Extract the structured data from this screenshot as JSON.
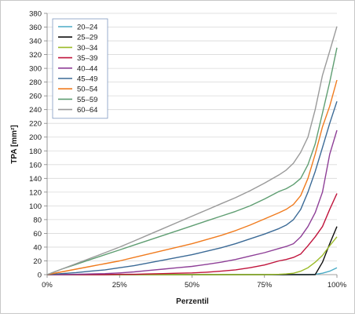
{
  "chart_data": {
    "type": "line",
    "xlabel": "Perzentil",
    "ylabel": "TPA [mm²]",
    "xlim": [
      0,
      100
    ],
    "ylim": [
      0,
      380
    ],
    "x_ticks": [
      0,
      25,
      50,
      75,
      100
    ],
    "x_tick_labels": [
      "0%",
      "25%",
      "50%",
      "75%",
      "100%"
    ],
    "y_ticks": [
      0,
      20,
      40,
      60,
      80,
      100,
      120,
      140,
      160,
      180,
      200,
      220,
      240,
      260,
      280,
      300,
      320,
      340,
      360,
      380
    ],
    "grid": "horizontal",
    "legend_position": "top-left",
    "x": [
      0,
      5,
      10,
      15,
      20,
      25,
      30,
      35,
      40,
      45,
      50,
      55,
      60,
      65,
      70,
      75,
      80,
      82.5,
      85,
      87.5,
      90,
      92.5,
      95,
      97.5,
      100
    ],
    "series": [
      {
        "name": "20–24",
        "color": "#4bacc6",
        "values": [
          0,
          0,
          0,
          0,
          0,
          0,
          0,
          0,
          0,
          0,
          0,
          0,
          0,
          0,
          0,
          0,
          0,
          0,
          0,
          0,
          0,
          0.5,
          2,
          5,
          10
        ]
      },
      {
        "name": "25–29",
        "color": "#111111",
        "values": [
          0,
          0,
          0,
          0,
          0,
          0,
          0,
          0,
          0,
          0,
          0,
          0,
          0,
          0,
          0,
          0,
          0,
          0,
          0,
          0,
          0,
          0,
          18,
          45,
          70
        ]
      },
      {
        "name": "30–34",
        "color": "#9bbb28",
        "values": [
          0,
          0,
          0,
          0,
          0,
          0,
          0,
          0,
          0,
          0,
          0,
          0,
          0,
          0,
          0,
          0,
          0.5,
          1,
          2,
          5,
          10,
          18,
          28,
          42,
          55
        ]
      },
      {
        "name": "35–39",
        "color": "#c0143c",
        "values": [
          0,
          0,
          0,
          0,
          0,
          0.5,
          0.5,
          1,
          1.5,
          2,
          2.5,
          3.5,
          5,
          7,
          10,
          14,
          20,
          22,
          25,
          30,
          42,
          55,
          70,
          95,
          118
        ]
      },
      {
        "name": "40–44",
        "color": "#8e3f97",
        "values": [
          0,
          0,
          0.5,
          1,
          1.5,
          2.5,
          4,
          6,
          8,
          10,
          12,
          15,
          18,
          22,
          27,
          32,
          38,
          41,
          45,
          55,
          70,
          90,
          120,
          175,
          210
        ]
      },
      {
        "name": "45–49",
        "color": "#3b6a96",
        "values": [
          0,
          1.5,
          3,
          5,
          7,
          10,
          13,
          17,
          21,
          25,
          29,
          34,
          39,
          45,
          52,
          59,
          67,
          72,
          80,
          95,
          120,
          150,
          185,
          220,
          252
        ]
      },
      {
        "name": "50–54",
        "color": "#f07b1e",
        "values": [
          0,
          4,
          8,
          12,
          16,
          20,
          25,
          30,
          35,
          40,
          45,
          51,
          57,
          64,
          72,
          81,
          90,
          95,
          102,
          115,
          140,
          175,
          215,
          245,
          283
        ]
      },
      {
        "name": "55–59",
        "color": "#5f9e72",
        "values": [
          0,
          8,
          15,
          22,
          29,
          36,
          43,
          50,
          57,
          64,
          71,
          78,
          85,
          92,
          100,
          110,
          121,
          125,
          131,
          140,
          160,
          190,
          235,
          280,
          330
        ]
      },
      {
        "name": "60–64",
        "color": "#9a9a9a",
        "values": [
          0,
          8,
          16,
          24,
          32,
          40,
          49,
          58,
          67,
          76,
          85,
          94,
          103,
          112,
          122,
          133,
          145,
          152,
          162,
          178,
          200,
          240,
          290,
          325,
          361
        ]
      }
    ]
  }
}
